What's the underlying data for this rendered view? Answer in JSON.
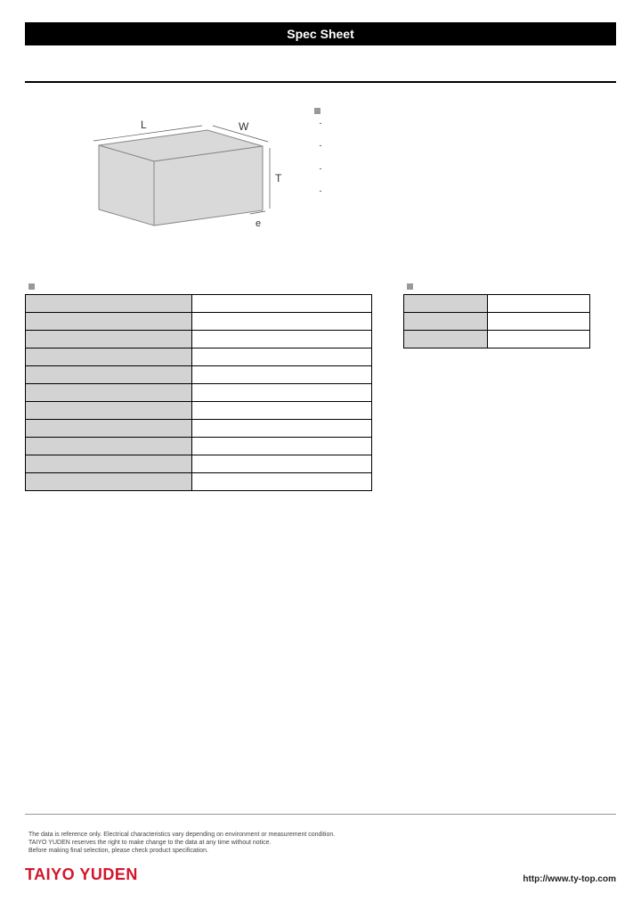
{
  "header": {
    "title": "Spec Sheet"
  },
  "diagram": {
    "labels": {
      "L": "L",
      "W": "W",
      "T": "T",
      "e": "e"
    },
    "fill_color": "#d9d9d9",
    "stroke_color": "#888888"
  },
  "features": {
    "title": "",
    "items": [
      "",
      "",
      "",
      ""
    ]
  },
  "specs": {
    "title": "",
    "rows": [
      {
        "label": "",
        "value": ""
      },
      {
        "label": "",
        "value": ""
      },
      {
        "label": "",
        "value": ""
      },
      {
        "label": "",
        "value": ""
      },
      {
        "label": "",
        "value": ""
      },
      {
        "label": "",
        "value": ""
      },
      {
        "label": "",
        "value": ""
      },
      {
        "label": "",
        "value": ""
      },
      {
        "label": "",
        "value": ""
      },
      {
        "label": "",
        "value": ""
      },
      {
        "label": "",
        "value": ""
      }
    ]
  },
  "packaging": {
    "title": "",
    "rows": [
      {
        "label": "",
        "value": ""
      },
      {
        "label": "",
        "value": ""
      },
      {
        "label": "",
        "value": ""
      }
    ]
  },
  "footer": {
    "disclaimer": [
      "The data is reference only. Electrical characteristics vary depending on environment or measurement condition.",
      "TAIYO YUDEN reserves the right to make change to the data at any time without notice.",
      "Before making final selection, please check product specification."
    ],
    "brand": "TAIYO YUDEN",
    "url": "http://www.ty-top.com"
  },
  "colors": {
    "header_bg": "#000000",
    "cell_label_bg": "#d3d3d3",
    "brand_color": "#d4152a"
  }
}
